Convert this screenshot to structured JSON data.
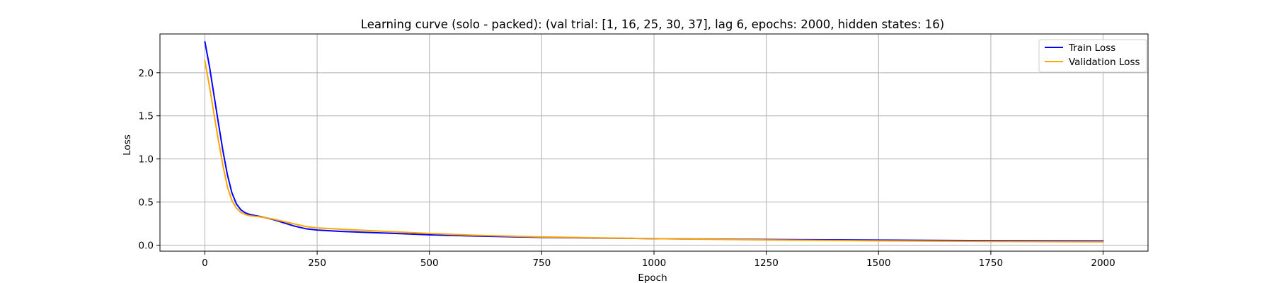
{
  "chart_data": {
    "type": "line",
    "title": "Learning curve (solo - packed): (val trial: [1, 16, 25, 30, 37], lag 6, epochs: 2000, hidden states: 16)",
    "xlabel": "Epoch",
    "ylabel": "Loss",
    "xlim": [
      -100,
      2100
    ],
    "ylim": [
      -0.07,
      2.45
    ],
    "xticks": [
      0,
      250,
      500,
      750,
      1000,
      1250,
      1500,
      1750,
      2000
    ],
    "xtick_labels": [
      "0",
      "250",
      "500",
      "750",
      "1000",
      "1250",
      "1500",
      "1750",
      "2000"
    ],
    "yticks": [
      0.0,
      0.5,
      1.0,
      1.5,
      2.0
    ],
    "ytick_labels": [
      "0.0",
      "0.5",
      "1.0",
      "1.5",
      "2.0"
    ],
    "grid": true,
    "legend_position": "top-right",
    "series": [
      {
        "name": "Train Loss",
        "color": "#0000ff",
        "x": [
          0,
          10,
          20,
          30,
          40,
          50,
          60,
          70,
          80,
          90,
          100,
          120,
          150,
          175,
          200,
          225,
          250,
          300,
          400,
          500,
          600,
          750,
          1000,
          1250,
          1500,
          1750,
          2000
        ],
        "y": [
          2.36,
          2.08,
          1.75,
          1.42,
          1.1,
          0.82,
          0.61,
          0.48,
          0.41,
          0.375,
          0.355,
          0.335,
          0.3,
          0.26,
          0.22,
          0.19,
          0.175,
          0.16,
          0.14,
          0.12,
          0.105,
          0.09,
          0.075,
          0.065,
          0.058,
          0.052,
          0.048
        ]
      },
      {
        "name": "Validation Loss",
        "color": "#ffa500",
        "x": [
          0,
          10,
          20,
          30,
          40,
          50,
          60,
          70,
          80,
          90,
          100,
          120,
          150,
          175,
          200,
          225,
          250,
          300,
          400,
          500,
          600,
          750,
          1000,
          1250,
          1500,
          1750,
          2000
        ],
        "y": [
          2.14,
          1.85,
          1.53,
          1.22,
          0.93,
          0.68,
          0.52,
          0.43,
          0.38,
          0.355,
          0.34,
          0.33,
          0.305,
          0.275,
          0.245,
          0.215,
          0.2,
          0.185,
          0.16,
          0.135,
          0.115,
          0.095,
          0.075,
          0.06,
          0.05,
          0.043,
          0.038
        ]
      }
    ]
  }
}
